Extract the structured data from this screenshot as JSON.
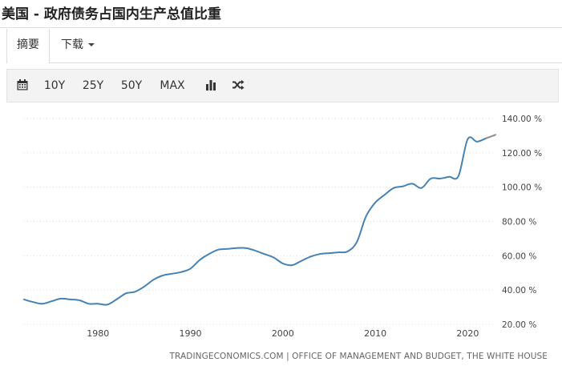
{
  "page": {
    "title": "美国 - 政府债务占国内生产总值比重"
  },
  "tabs": {
    "summary": "摘要",
    "download": "下载"
  },
  "toolbar": {
    "calendar_icon": "calendar-icon",
    "ranges": [
      "10Y",
      "25Y",
      "50Y",
      "MAX"
    ],
    "chart_type_icon": "bar-chart-icon",
    "compare_icon": "shuffle-icon"
  },
  "colors": {
    "line": "#4682b4",
    "line_tail": "#8c8c8c",
    "grid": "#dddddd",
    "axis_text": "#444444"
  },
  "source": "TRADINGECONOMICS.COM | OFFICE OF MANAGEMENT AND BUDGET, THE WHITE HOUSE",
  "chart_data": {
    "type": "line",
    "title": "",
    "xlabel": "",
    "ylabel": "",
    "xlim": [
      1972,
      2023
    ],
    "ylim": [
      20,
      140
    ],
    "x_ticks": [
      1980,
      1990,
      2000,
      2010,
      2020
    ],
    "y_ticks": [
      20,
      40,
      60,
      80,
      100,
      120,
      140
    ],
    "y_tick_labels": [
      "20.00 %",
      "40.00 %",
      "60.00 %",
      "80.00 %",
      "100.00 %",
      "120.00 %",
      "140.00 %"
    ],
    "grid": "horizontal-dotted",
    "series": [
      {
        "x": [
          1972,
          1973,
          1974,
          1975,
          1976,
          1977,
          1978,
          1979,
          1980,
          1981,
          1982,
          1983,
          1984,
          1985,
          1986,
          1987,
          1988,
          1989,
          1990,
          1991,
          1992,
          1993,
          1994,
          1995,
          1996,
          1997,
          1998,
          1999,
          2000,
          2001,
          2002,
          2003,
          2004,
          2005,
          2006,
          2007,
          2008,
          2009,
          2010,
          2011,
          2012,
          2013,
          2014,
          2015,
          2016,
          2017,
          2018,
          2019,
          2020,
          2021,
          2022,
          2023
        ],
        "values": [
          34.5,
          33,
          32,
          33.5,
          35,
          34.5,
          34,
          32,
          32,
          31.5,
          34.5,
          38,
          39,
          42,
          46,
          48.5,
          49.5,
          50.5,
          52.5,
          57.5,
          61,
          63.5,
          64,
          64.5,
          64.5,
          63,
          61,
          59,
          55.5,
          54.5,
          57,
          59.5,
          61,
          61.5,
          62,
          62.5,
          68,
          83,
          91,
          95.5,
          99.5,
          100.5,
          102,
          99.5,
          105,
          105,
          106,
          106.5,
          128,
          126.5,
          128.5,
          130.5
        ]
      }
    ]
  }
}
